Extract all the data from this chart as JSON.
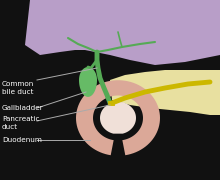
{
  "bg_color": "#111111",
  "liver_color": "#b89ec8",
  "pancreas_color": "#e8e0a0",
  "duodenum_color": "#dba898",
  "duodenum_inner_color": "#f0e0d8",
  "bile_duct_color": "#55aa55",
  "gallbladder_color": "#66bb66",
  "pancreatic_duct_color": "#ccb800",
  "label_color": "#ffffff",
  "line_color": "#aaaaaa",
  "labels": {
    "common_bile_duct": "Common\nbile duct",
    "gallbladder": "Gallbladder",
    "pancreatic_duct": "Pancreatic\nduct",
    "duodenum": "Duodenum"
  }
}
